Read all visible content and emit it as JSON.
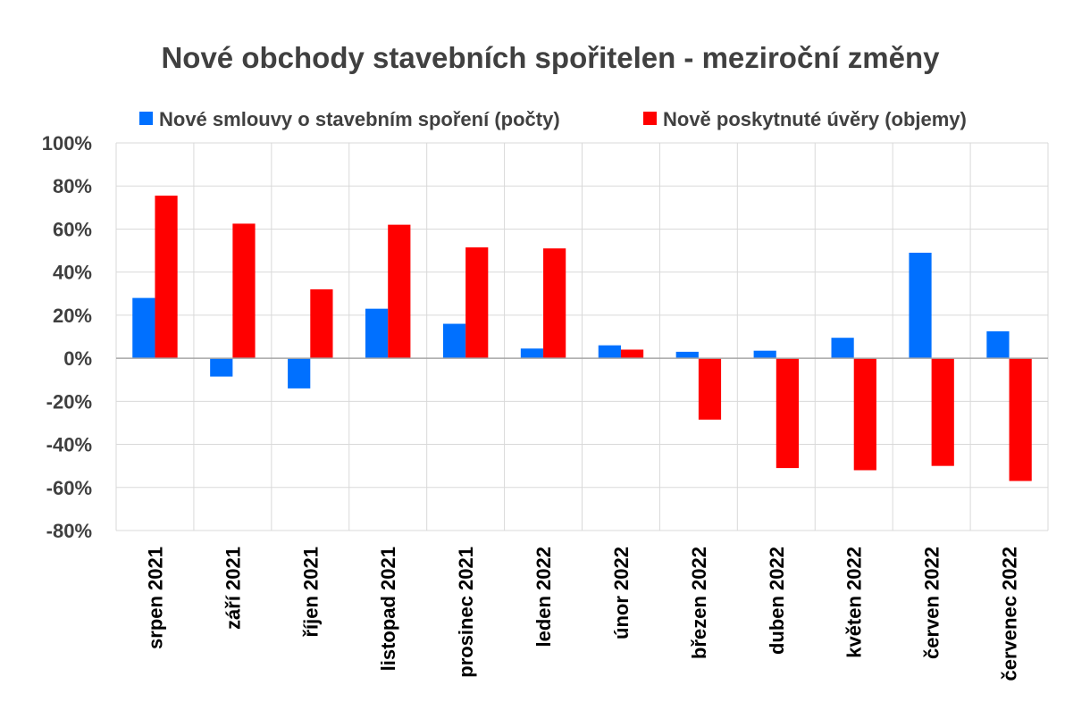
{
  "chart_data": {
    "type": "bar",
    "title": "Nové obchody stavebních spořitelen - meziroční změny",
    "categories": [
      "srpen 2021",
      "září 2021",
      "říjen 2021",
      "listopad 2021",
      "prosinec 2021",
      "leden 2022",
      "únor 2022",
      "březen 2022",
      "duben 2022",
      "květen 2022",
      "červen 2022",
      "červenec 2022"
    ],
    "series": [
      {
        "name": "Nové smlouvy o stavebním spoření (počty)",
        "color": "#0070FF",
        "values": [
          28,
          -8.5,
          -14,
          23,
          16,
          4.5,
          6,
          3,
          3.5,
          9.5,
          49,
          12.5
        ]
      },
      {
        "name": "Nově poskytnuté úvěry (objemy)",
        "color": "#FF0000",
        "values": [
          75.5,
          62.5,
          32,
          62,
          51.5,
          51,
          4,
          -28.5,
          -51,
          -52,
          -50,
          -57
        ]
      }
    ],
    "ylim": [
      -80,
      100
    ],
    "yticks": [
      100,
      80,
      60,
      40,
      20,
      0,
      -20,
      -40,
      -60,
      -80
    ],
    "ytick_labels": [
      "100%",
      "80%",
      "60%",
      "40%",
      "20%",
      "0%",
      "-20%",
      "-40%",
      "-60%",
      "-80%"
    ],
    "xlabel": "",
    "ylabel": "",
    "legend_position": "top",
    "grid": true,
    "gridline_color": "#d9d9d9"
  }
}
